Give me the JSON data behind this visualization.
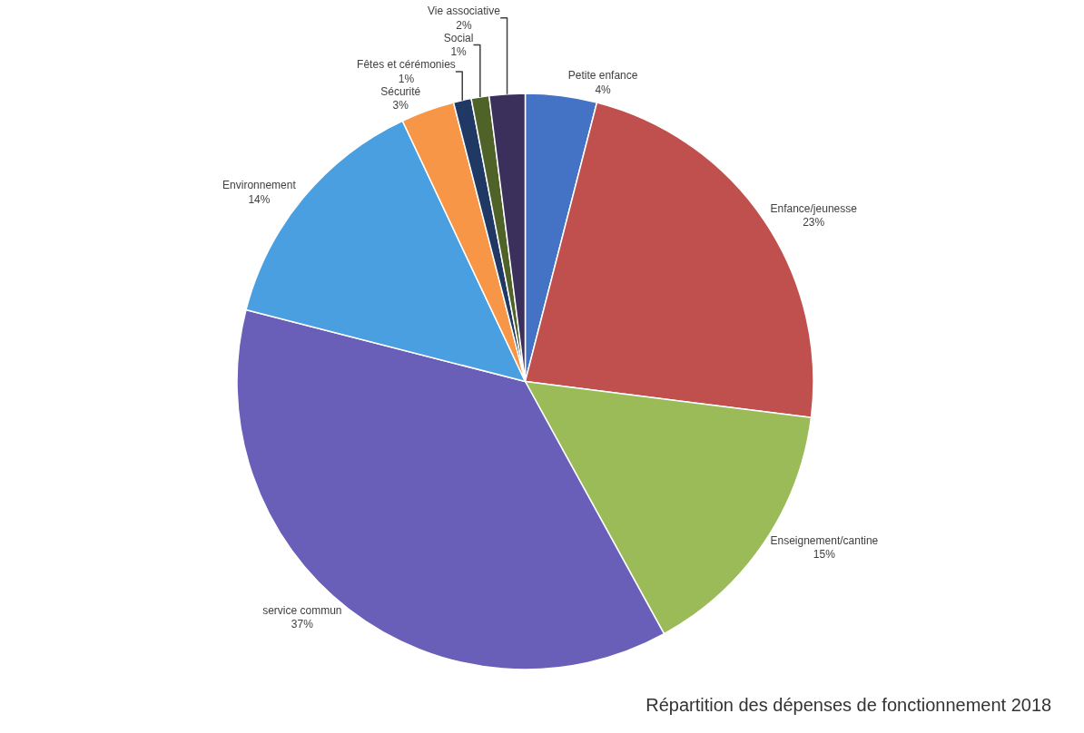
{
  "chart_data": {
    "type": "pie",
    "title": "Répartition des dépenses de fonctionnement 2018",
    "categories": [
      "Petite enfance",
      "Enfance/jeunesse",
      "Enseignement/cantine",
      "service commun",
      "Environnement",
      "Sécurité",
      "Fêtes et cérémonies",
      "Social",
      "Vie associative"
    ],
    "values": [
      4,
      23,
      15,
      37,
      14,
      3,
      1,
      1,
      2
    ],
    "value_labels": [
      "4%",
      "23%",
      "15%",
      "37%",
      "14%",
      "3%",
      "1%",
      "1%",
      "2%"
    ],
    "colors": [
      "#4472c4",
      "#c0504d",
      "#9bbb59",
      "#6a5fb8",
      "#4a9fe0",
      "#f79646",
      "#1f3864",
      "#4f6228",
      "#3b2f5c"
    ],
    "legend": false
  }
}
